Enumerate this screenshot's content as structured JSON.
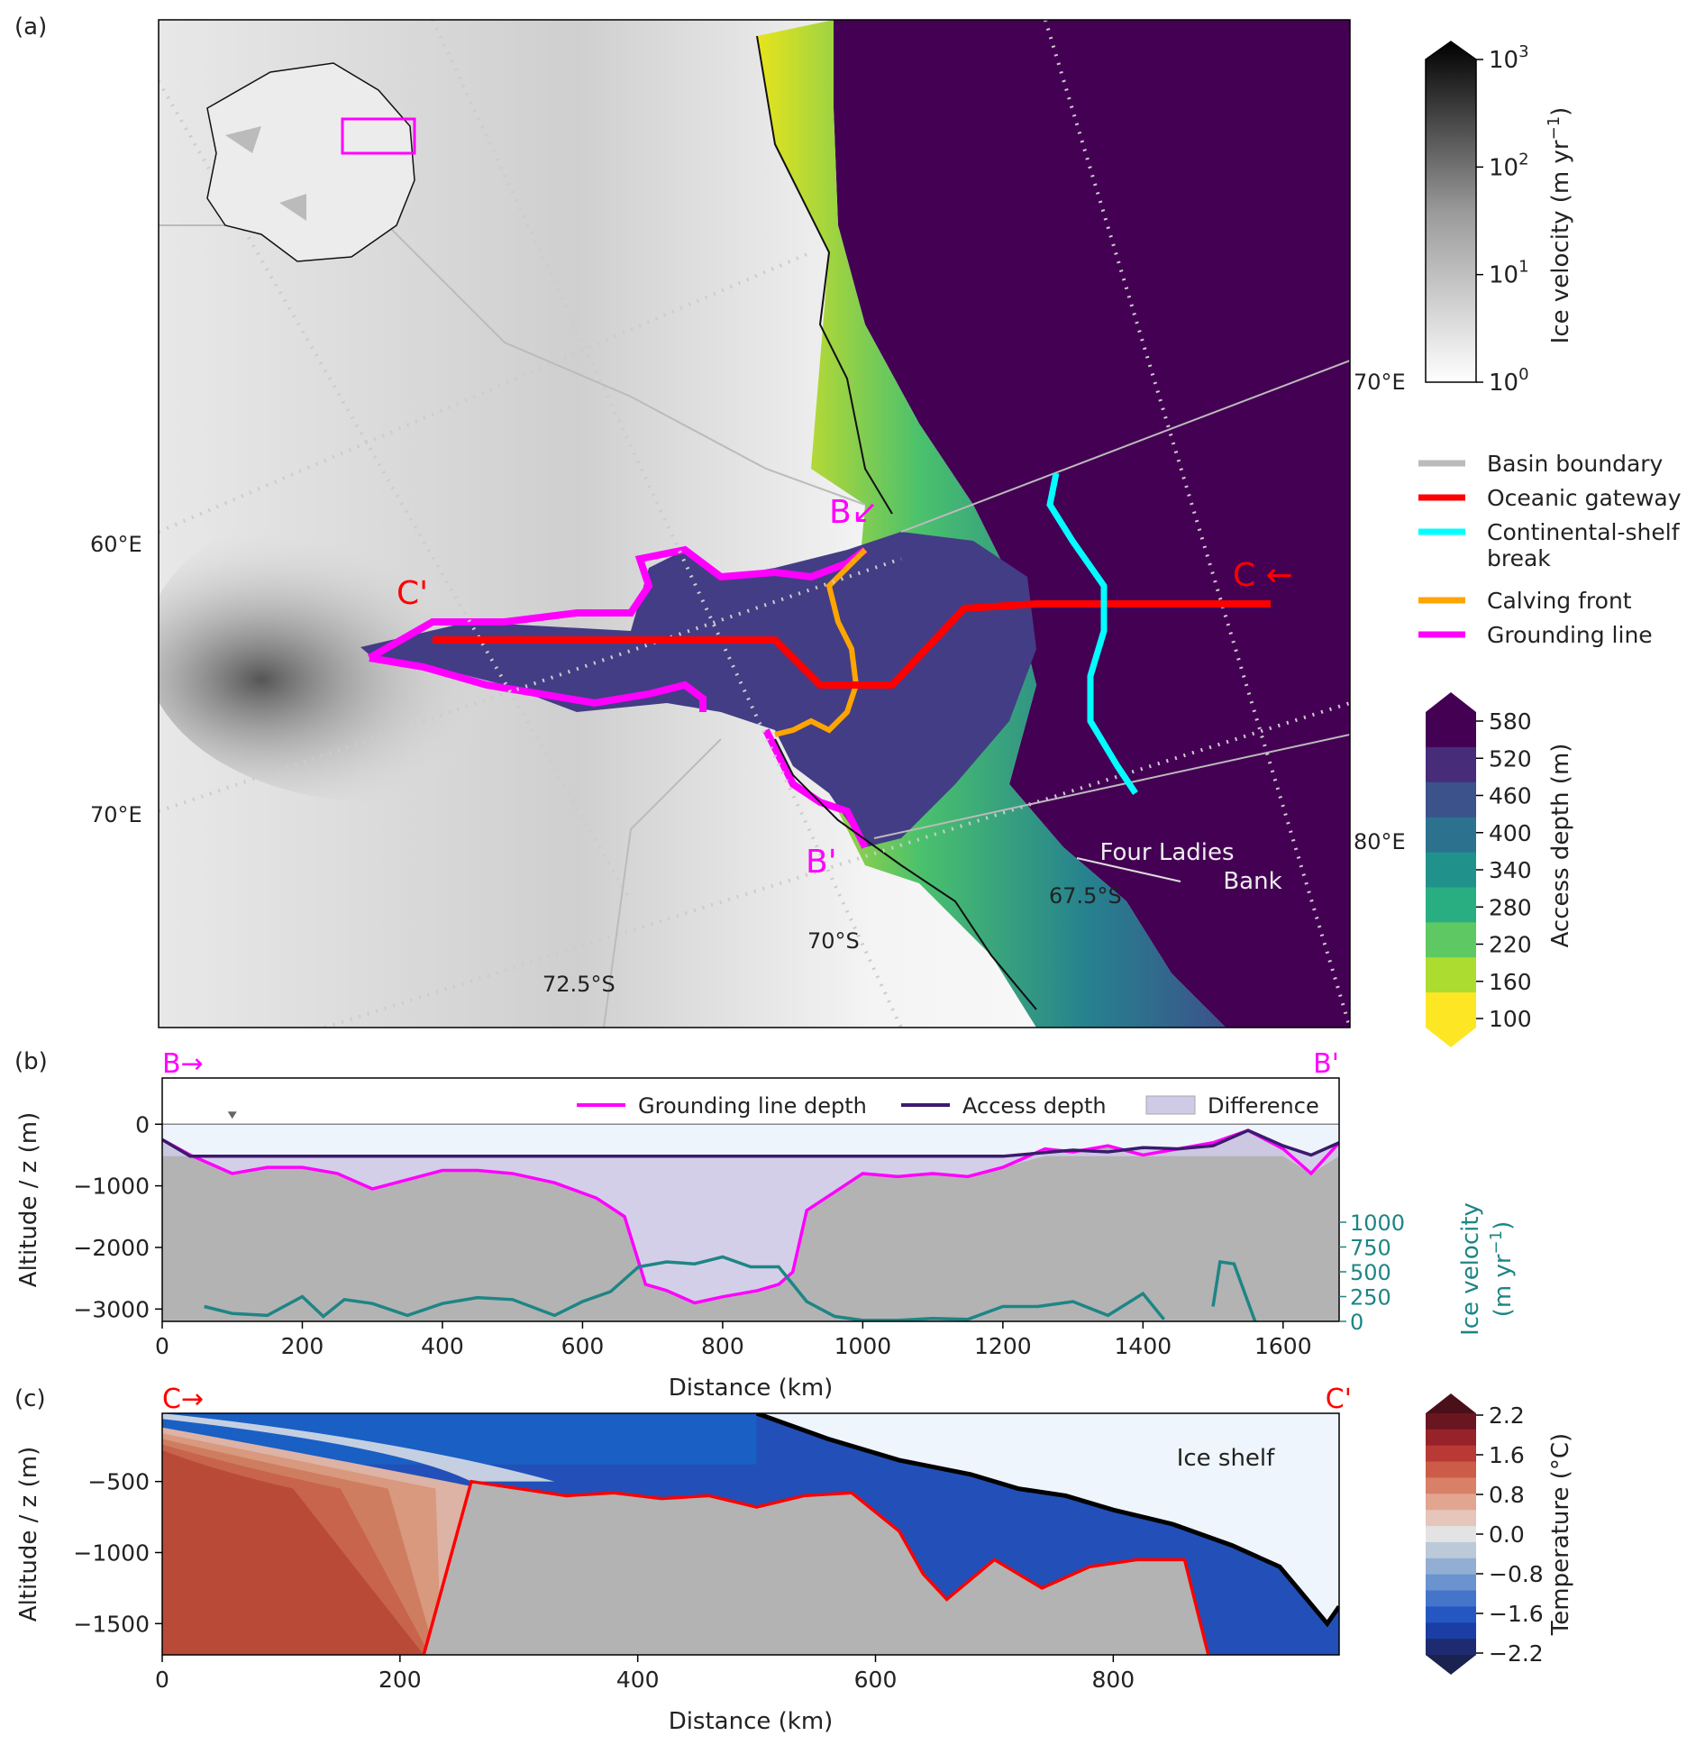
{
  "panel_labels": {
    "a": "(a)",
    "b": "(b)",
    "c": "(c)"
  },
  "map": {
    "lon_labels": [
      "60°E",
      "70°E",
      "70°E",
      "80°E"
    ],
    "lat_labels": [
      "72.5°S",
      "70°S",
      "67.5°S"
    ],
    "annotations": {
      "b_start": "B↙",
      "b_end": "B'",
      "c_start": "C ←",
      "c_end": "C'",
      "bank": [
        "Four Ladies",
        "Bank"
      ]
    },
    "colors": {
      "ocean": "#440154",
      "gateway": "#ff0000",
      "shelf_break": "#00ffff",
      "calving": "#ffa500",
      "grounding": "#ff00ff"
    }
  },
  "colorbars": {
    "velocity": {
      "label": "Ice velocity (m yr",
      "label_sup": "−1",
      "label_end": ")",
      "ticks": [
        {
          "base": "10",
          "exp": "3"
        },
        {
          "base": "10",
          "exp": "2"
        },
        {
          "base": "10",
          "exp": "1"
        },
        {
          "base": "10",
          "exp": "0"
        }
      ]
    },
    "access": {
      "label": "Access depth (m)",
      "ticks": [
        "580",
        "520",
        "460",
        "400",
        "340",
        "280",
        "220",
        "160",
        "100"
      ]
    },
    "temperature": {
      "label": "Temperature (°C)",
      "ticks": [
        "2.2",
        "1.6",
        "0.8",
        "0.0",
        "−0.8",
        "−1.6",
        "−2.2"
      ]
    }
  },
  "legend_a": [
    {
      "label": "Basin boundary",
      "color": "#bbbbbb"
    },
    {
      "label": "Oceanic gateway",
      "color": "#ff0000"
    },
    {
      "label": "Continental-shelf",
      "label2": "break",
      "color": "#00ffff"
    },
    {
      "label": "Calving front",
      "color": "#ffa500"
    },
    {
      "label": "Grounding line",
      "color": "#ff00ff"
    }
  ],
  "chart_data": [
    {
      "type": "line",
      "panel": "b",
      "corner_labels": {
        "left": "B→",
        "right": "B'"
      },
      "xlabel": "Distance (km)",
      "ylabel": "Altitude / z (m)",
      "y2label": "Ice velocity",
      "y2label_units": "(m yr",
      "y2label_sup": "−1",
      "y2label_end": ")",
      "xlim": [
        0,
        1680
      ],
      "ylim": [
        -3200,
        750
      ],
      "xticks": [
        "0",
        "200",
        "400",
        "600",
        "800",
        "1000",
        "1200",
        "1400",
        "1600"
      ],
      "yticks": [
        "0",
        "−1000",
        "−2000",
        "−3000"
      ],
      "y2ticks": [
        "1000",
        "750",
        "500",
        "250",
        "0"
      ],
      "legend": [
        "Grounding line depth",
        "Access depth",
        "Difference"
      ],
      "series": [
        {
          "name": "Grounding line depth",
          "color": "#ff00ff",
          "x": [
            0,
            40,
            80,
            100,
            150,
            200,
            250,
            300,
            350,
            400,
            450,
            500,
            560,
            620,
            660,
            690,
            720,
            760,
            800,
            850,
            880,
            900,
            920,
            960,
            1000,
            1050,
            1100,
            1150,
            1200,
            1260,
            1300,
            1350,
            1400,
            1450,
            1500,
            1550,
            1600,
            1640,
            1680
          ],
          "y": [
            -250,
            -500,
            -700,
            -800,
            -700,
            -700,
            -800,
            -1050,
            -900,
            -750,
            -750,
            -800,
            -950,
            -1200,
            -1500,
            -2600,
            -2700,
            -2900,
            -2800,
            -2700,
            -2600,
            -2400,
            -1400,
            -1100,
            -800,
            -850,
            -800,
            -850,
            -700,
            -400,
            -450,
            -350,
            -500,
            -400,
            -300,
            -100,
            -400,
            -800,
            -300
          ]
        },
        {
          "name": "Access depth",
          "color": "#3b1a6e",
          "x": [
            0,
            40,
            100,
            300,
            600,
            900,
            1200,
            1300,
            1350,
            1400,
            1450,
            1500,
            1550,
            1600,
            1640,
            1680
          ],
          "y": [
            -250,
            -520,
            -520,
            -520,
            -520,
            -520,
            -520,
            -420,
            -450,
            -380,
            -400,
            -350,
            -100,
            -350,
            -500,
            -300
          ]
        },
        {
          "name": "Ice velocity",
          "color": "#1e8585",
          "axis": "right",
          "x": [
            60,
            100,
            150,
            200,
            230,
            260,
            300,
            350,
            400,
            450,
            500,
            560,
            600,
            640,
            680,
            720,
            760,
            800,
            840,
            880,
            920,
            960,
            1000,
            1050,
            1100,
            1150,
            1200,
            1250,
            1300,
            1350,
            1400,
            1430
          ],
          "y": [
            150,
            80,
            60,
            250,
            50,
            220,
            180,
            60,
            180,
            240,
            220,
            60,
            200,
            300,
            550,
            600,
            580,
            650,
            550,
            550,
            200,
            50,
            10,
            10,
            30,
            20,
            150,
            150,
            200,
            60,
            280,
            20
          ]
        }
      ]
    },
    {
      "type": "area",
      "panel": "c",
      "corner_labels": {
        "left": "C→",
        "right": "C'"
      },
      "xlabel": "Distance (km)",
      "ylabel": "Altitude / z (m)",
      "xlim": [
        0,
        990
      ],
      "ylim": [
        -1720,
        -20
      ],
      "xticks": [
        "0",
        "200",
        "400",
        "600",
        "800"
      ],
      "yticks": [
        "−500",
        "−1000",
        "−1500"
      ],
      "annotation": "Ice shelf",
      "series": [
        {
          "name": "Ice shelf base",
          "color": "#000000",
          "x": [
            500,
            560,
            620,
            680,
            720,
            760,
            800,
            850,
            900,
            940,
            960,
            980,
            990
          ],
          "y": [
            -20,
            -200,
            -350,
            -450,
            -550,
            -600,
            -700,
            -800,
            -950,
            -1100,
            -1300,
            -1500,
            -1380
          ]
        },
        {
          "name": "Bathymetry",
          "color": "#ff0000",
          "x": [
            220,
            260,
            300,
            340,
            380,
            420,
            460,
            500,
            540,
            580,
            620,
            640,
            660,
            700,
            740,
            780,
            820,
            860,
            880
          ],
          "y": [
            -1720,
            -500,
            -550,
            -600,
            -580,
            -620,
            -600,
            -680,
            -600,
            -580,
            -850,
            -1150,
            -1330,
            -1050,
            -1250,
            -1100,
            -1050,
            -1050,
            -1720
          ]
        }
      ]
    }
  ]
}
